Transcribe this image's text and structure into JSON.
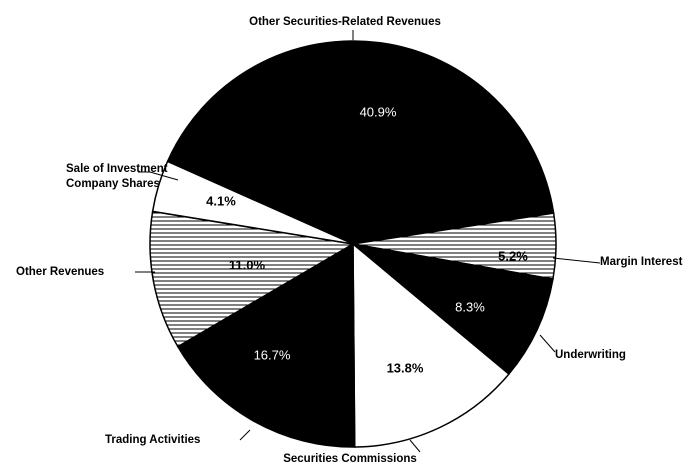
{
  "chart_data": {
    "type": "pie",
    "categories": [
      "Other Securities-Related Revenues",
      "Margin Interest",
      "Underwriting",
      "Securities Commissions",
      "Trading Activities",
      "Other Revenues",
      "Sale of Investment Company Shares"
    ],
    "values": [
      40.9,
      5.2,
      8.3,
      13.8,
      16.7,
      11.0,
      4.1
    ],
    "value_labels": [
      "40.9%",
      "5.2%",
      "8.3%",
      "13.8%",
      "16.7%",
      "11.0%",
      "4.1%"
    ],
    "fills": [
      "black",
      "hatch",
      "black",
      "white",
      "black",
      "hatch",
      "white"
    ]
  }
}
